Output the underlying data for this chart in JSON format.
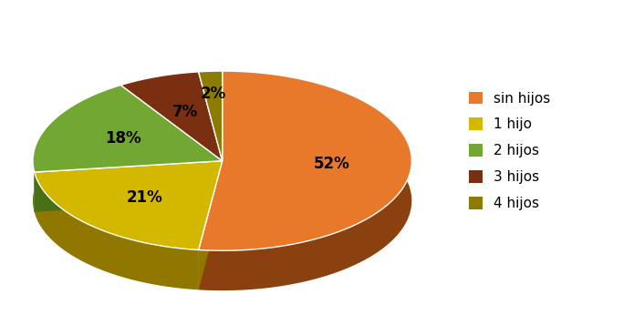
{
  "labels": [
    "sin hijos",
    "1 hijo",
    "2 hijos",
    "3 hijos",
    "4 hijos"
  ],
  "values": [
    52,
    21,
    18,
    7,
    2
  ],
  "colors": [
    "#E8782A",
    "#D4B800",
    "#72A832",
    "#7A3010",
    "#8B7B00"
  ],
  "shadow_colors": [
    "#8B4010",
    "#907800",
    "#4A7015",
    "#4A1C08",
    "#5A5000"
  ],
  "pct_labels": [
    "52%",
    "21%",
    "18%",
    "7%",
    "2%"
  ],
  "legend_labels": [
    "sin hijos",
    "1 hijo",
    "2 hijos",
    "3 hijos",
    "4 hijos"
  ],
  "background_color": "#ffffff",
  "font_size": 12
}
